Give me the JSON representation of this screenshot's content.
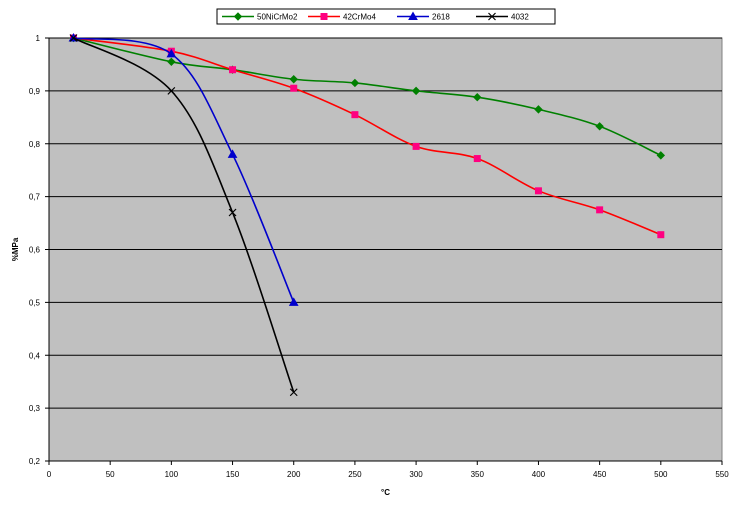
{
  "chart_data": {
    "type": "line",
    "title": "",
    "xlabel": "°C",
    "ylabel": "%MPa",
    "xlim": [
      0,
      550
    ],
    "ylim": [
      0.2,
      1
    ],
    "x_ticks": [
      0,
      50,
      100,
      150,
      200,
      250,
      300,
      350,
      400,
      450,
      500,
      550
    ],
    "y_ticks": [
      0.2,
      0.3,
      0.4,
      0.5,
      0.6,
      0.7,
      0.8,
      0.9,
      1
    ],
    "x_tick_labels": [
      "0",
      "50",
      "100",
      "150",
      "200",
      "250",
      "300",
      "350",
      "400",
      "450",
      "500",
      "550"
    ],
    "y_tick_labels": [
      "0,2",
      "0,3",
      "0,4",
      "0,5",
      "0,6",
      "0,7",
      "0,8",
      "0,9",
      "1"
    ],
    "plot_background": "#c0c0c0",
    "gridlines": "horizontal",
    "legend_position": "top",
    "series": [
      {
        "name": "50NiCrMo2",
        "color": "#008000",
        "marker": "diamond",
        "x": [
          20,
          100,
          150,
          200,
          250,
          300,
          350,
          400,
          450,
          500
        ],
        "values": [
          1,
          0.955,
          0.94,
          0.922,
          0.915,
          0.9,
          0.888,
          0.865,
          0.833,
          0.778
        ]
      },
      {
        "name": "42CrMo4",
        "color": "#ff0080",
        "line_color": "#ff0000",
        "marker": "square",
        "x": [
          20,
          100,
          150,
          200,
          250,
          300,
          350,
          400,
          450,
          500
        ],
        "values": [
          1,
          0.975,
          0.94,
          0.905,
          0.855,
          0.795,
          0.772,
          0.711,
          0.675,
          0.628
        ]
      },
      {
        "name": "2618",
        "color": "#0000cc",
        "marker": "triangle",
        "x": [
          20,
          100,
          150,
          200
        ],
        "values": [
          1,
          0.97,
          0.78,
          0.5
        ]
      },
      {
        "name": "4032",
        "color": "#000000",
        "marker": "x",
        "x": [
          20,
          100,
          150,
          200
        ],
        "values": [
          1,
          0.9,
          0.67,
          0.33
        ]
      }
    ]
  }
}
